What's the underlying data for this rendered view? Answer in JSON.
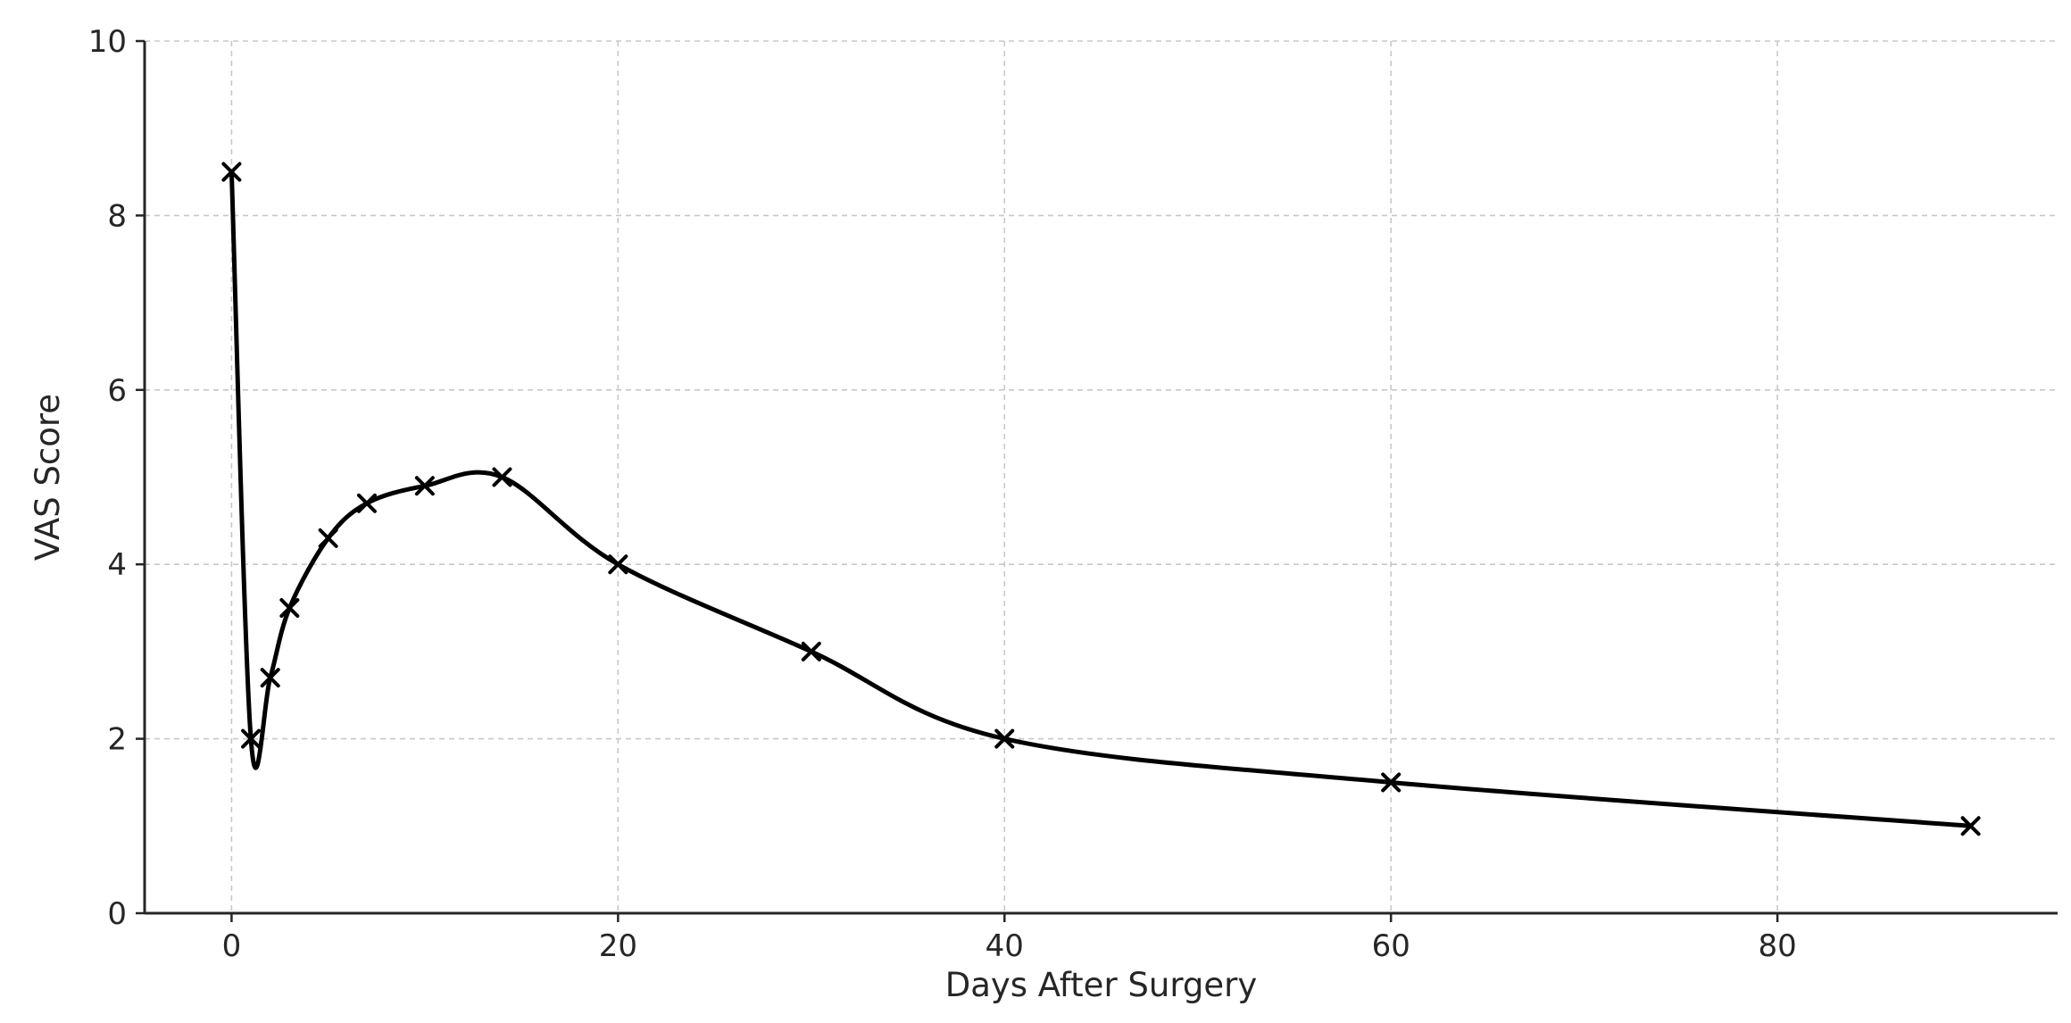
{
  "chart_data": {
    "type": "line",
    "title": "",
    "xlabel": "Days After Surgery",
    "ylabel": "VAS Score",
    "xlim": [
      -4.5,
      94.5
    ],
    "ylim": [
      0,
      10
    ],
    "xticks": [
      0,
      20,
      40,
      60,
      80
    ],
    "yticks": [
      0,
      2,
      4,
      6,
      8,
      10
    ],
    "grid": true,
    "legend": "none",
    "series": [
      {
        "marker": "x",
        "color": "#000000",
        "points": [
          {
            "x": 0,
            "y": 8.5
          },
          {
            "x": 1,
            "y": 2.0
          },
          {
            "x": 2,
            "y": 2.7
          },
          {
            "x": 3,
            "y": 3.5
          },
          {
            "x": 5,
            "y": 4.3
          },
          {
            "x": 7,
            "y": 4.7
          },
          {
            "x": 10,
            "y": 4.9
          },
          {
            "x": 14,
            "y": 5.0
          },
          {
            "x": 20,
            "y": 4.0
          },
          {
            "x": 30,
            "y": 3.0
          },
          {
            "x": 40,
            "y": 2.0
          },
          {
            "x": 60,
            "y": 1.5
          },
          {
            "x": 90,
            "y": 1.0
          }
        ]
      }
    ]
  }
}
